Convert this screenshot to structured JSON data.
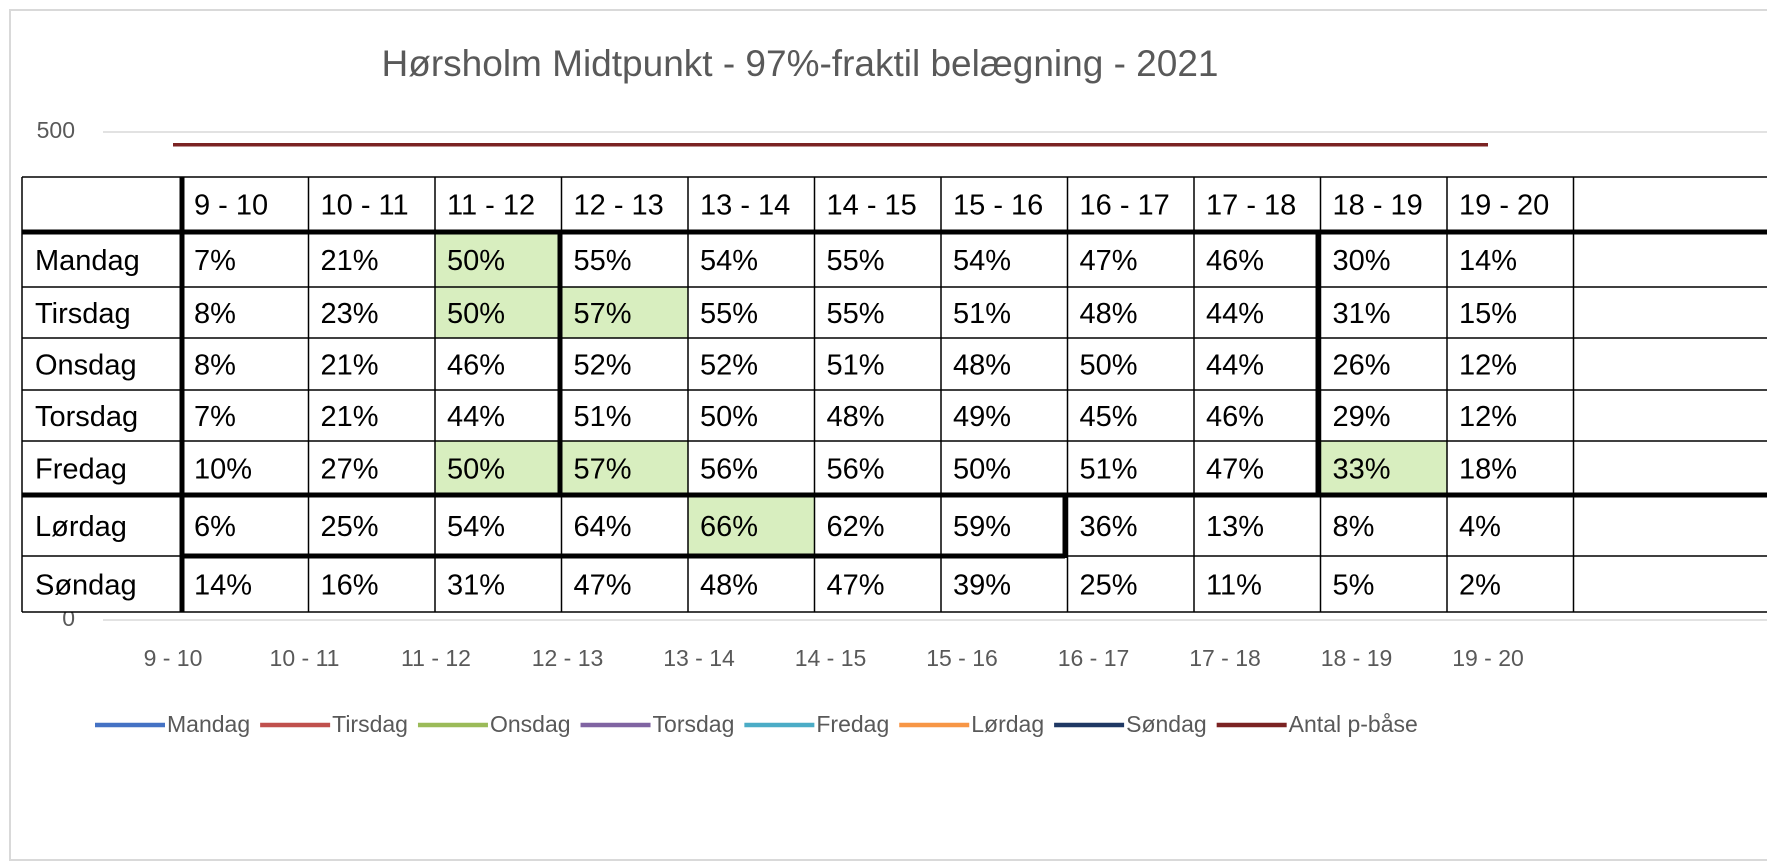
{
  "chart_data": {
    "type": "line",
    "title": "Hørsholm Midtpunkt - 97%-fraktil belægning - 2021",
    "categories": [
      "9 - 10",
      "10 - 11",
      "11 - 12",
      "12 - 13",
      "13 - 14",
      "14 - 15",
      "15 - 16",
      "16 - 17",
      "17 - 18",
      "18 - 19",
      "19 - 20"
    ],
    "ylim": [
      0,
      500
    ],
    "yticks": [
      0,
      500
    ],
    "grid": true,
    "legend": "bottom",
    "series": [
      {
        "name": "Mandag",
        "color": "#4472c4",
        "values": [
          null,
          null,
          null,
          null,
          null,
          null,
          null,
          null,
          null,
          null,
          null
        ]
      },
      {
        "name": "Tirsdag",
        "color": "#c0504d",
        "values": [
          null,
          null,
          null,
          null,
          null,
          null,
          null,
          null,
          null,
          null,
          null
        ]
      },
      {
        "name": "Onsdag",
        "color": "#9bbb59",
        "values": [
          null,
          null,
          null,
          null,
          null,
          null,
          null,
          null,
          null,
          null,
          null
        ]
      },
      {
        "name": "Torsdag",
        "color": "#8064a2",
        "values": [
          null,
          null,
          null,
          null,
          null,
          null,
          null,
          null,
          null,
          null,
          null
        ]
      },
      {
        "name": "Fredag",
        "color": "#4bacc6",
        "values": [
          null,
          null,
          null,
          null,
          null,
          null,
          null,
          null,
          null,
          null,
          null
        ]
      },
      {
        "name": "Lørdag",
        "color": "#f79646",
        "values": [
          null,
          null,
          null,
          null,
          null,
          null,
          null,
          null,
          null,
          null,
          null
        ]
      },
      {
        "name": "Søndag",
        "color": "#1f3864",
        "values": [
          null,
          null,
          null,
          null,
          null,
          null,
          null,
          null,
          null,
          null,
          null
        ]
      },
      {
        "name": "Antal p-båse",
        "color": "#7b2323",
        "values": [
          487,
          487,
          487,
          487,
          487,
          487,
          487,
          487,
          487,
          487,
          487
        ]
      }
    ],
    "table": {
      "highlight_color": "#d8eebf",
      "highlighted": [
        [
          0,
          2
        ],
        [
          1,
          2
        ],
        [
          1,
          3
        ],
        [
          4,
          2
        ],
        [
          4,
          3
        ],
        [
          4,
          9
        ],
        [
          5,
          4
        ]
      ],
      "rows": [
        {
          "label": "Mandag",
          "cells": [
            "7%",
            "21%",
            "50%",
            "55%",
            "54%",
            "55%",
            "54%",
            "47%",
            "46%",
            "30%",
            "14%"
          ]
        },
        {
          "label": "Tirsdag",
          "cells": [
            "8%",
            "23%",
            "50%",
            "57%",
            "55%",
            "55%",
            "51%",
            "48%",
            "44%",
            "31%",
            "15%"
          ]
        },
        {
          "label": "Onsdag",
          "cells": [
            "8%",
            "21%",
            "46%",
            "52%",
            "52%",
            "51%",
            "48%",
            "50%",
            "44%",
            "26%",
            "12%"
          ]
        },
        {
          "label": "Torsdag",
          "cells": [
            "7%",
            "21%",
            "44%",
            "51%",
            "50%",
            "48%",
            "49%",
            "45%",
            "46%",
            "29%",
            "12%"
          ]
        },
        {
          "label": "Fredag",
          "cells": [
            "10%",
            "27%",
            "50%",
            "57%",
            "56%",
            "56%",
            "50%",
            "51%",
            "47%",
            "33%",
            "18%"
          ]
        },
        {
          "label": "Lørdag",
          "cells": [
            "6%",
            "25%",
            "54%",
            "64%",
            "66%",
            "62%",
            "59%",
            "36%",
            "13%",
            "8%",
            "4%"
          ]
        },
        {
          "label": "Søndag",
          "cells": [
            "14%",
            "16%",
            "31%",
            "47%",
            "48%",
            "47%",
            "39%",
            "25%",
            "11%",
            "5%",
            "2%"
          ]
        }
      ]
    }
  }
}
